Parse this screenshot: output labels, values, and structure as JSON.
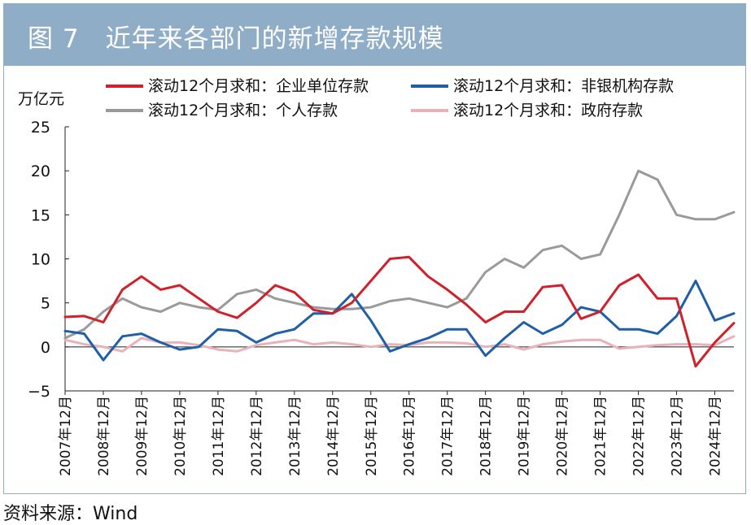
{
  "figure": {
    "title": "图 7　近年来各部门的新增存款规模",
    "source": "资料来源：Wind"
  },
  "colors": {
    "title_bar": "#8fadc6",
    "corporate": "#d0202a",
    "nonbank": "#1f5fa8",
    "household": "#9a9a9a",
    "government": "#e7b3b8"
  },
  "chart_data": {
    "type": "line",
    "ylabel": "万亿元",
    "ylim": [
      -5,
      25
    ],
    "yticks": [
      -5,
      0,
      5,
      10,
      15,
      20,
      25
    ],
    "grid": false,
    "legend_position": "top",
    "x_tick_labels": [
      "2007年12月",
      "2008年12月",
      "2009年12月",
      "2010年12月",
      "2011年12月",
      "2012年12月",
      "2013年12月",
      "2014年12月",
      "2015年12月",
      "2016年12月",
      "2017年12月",
      "2018年12月",
      "2019年12月",
      "2020年12月",
      "2021年12月",
      "2022年12月",
      "2023年12月",
      "2024年12月"
    ],
    "x_start": "2007-12",
    "x_end": "2025-06",
    "x": [
      "2007-12",
      "2008-06",
      "2008-12",
      "2009-06",
      "2009-12",
      "2010-06",
      "2010-12",
      "2011-06",
      "2011-12",
      "2012-06",
      "2012-12",
      "2013-06",
      "2013-12",
      "2014-06",
      "2014-12",
      "2015-06",
      "2015-12",
      "2016-06",
      "2016-12",
      "2017-06",
      "2017-12",
      "2018-06",
      "2018-12",
      "2019-06",
      "2019-12",
      "2020-06",
      "2020-12",
      "2021-06",
      "2021-12",
      "2022-06",
      "2022-12",
      "2023-06",
      "2023-12",
      "2024-06",
      "2024-12",
      "2025-06"
    ],
    "series": [
      {
        "name": "滚动12个月求和：企业单位存款",
        "color_key": "corporate",
        "values": [
          3.4,
          3.5,
          2.8,
          6.5,
          8.0,
          6.5,
          7.0,
          5.5,
          4.0,
          3.3,
          5.0,
          7.0,
          6.2,
          4.2,
          3.8,
          5.0,
          7.5,
          10.0,
          10.2,
          8.0,
          6.5,
          4.8,
          2.8,
          4.0,
          4.0,
          6.8,
          7.0,
          3.2,
          4.0,
          7.0,
          8.2,
          5.5,
          5.5,
          -2.2,
          0.5,
          2.7
        ]
      },
      {
        "name": "滚动12个月求和：非银机构存款",
        "color_key": "nonbank",
        "values": [
          1.8,
          1.5,
          -1.5,
          1.2,
          1.5,
          0.5,
          -0.3,
          0.0,
          2.0,
          1.8,
          0.5,
          1.5,
          2.0,
          3.8,
          3.8,
          6.0,
          3.0,
          -0.5,
          0.3,
          1.0,
          2.0,
          2.0,
          -1.0,
          1.0,
          2.8,
          1.5,
          2.5,
          4.5,
          4.0,
          2.0,
          2.0,
          1.5,
          3.5,
          7.5,
          3.0,
          3.8
        ]
      },
      {
        "name": "滚动12个月求和：个人存款",
        "color_key": "household",
        "values": [
          1.0,
          2.0,
          4.0,
          5.5,
          4.5,
          4.0,
          5.0,
          4.5,
          4.2,
          6.0,
          6.5,
          5.5,
          5.0,
          4.5,
          4.3,
          4.3,
          4.5,
          5.2,
          5.5,
          5.0,
          4.5,
          5.5,
          8.5,
          10.0,
          9.0,
          11.0,
          11.5,
          10.0,
          10.5,
          15.0,
          20.0,
          19.0,
          15.0,
          14.5,
          14.5,
          15.3
        ]
      },
      {
        "name": "滚动12个月求和：政府存款",
        "color_key": "government",
        "values": [
          0.8,
          0.3,
          0.0,
          -0.5,
          1.0,
          0.5,
          0.5,
          0.2,
          -0.3,
          -0.5,
          0.2,
          0.5,
          0.8,
          0.3,
          0.5,
          0.3,
          0.0,
          0.3,
          0.2,
          0.5,
          0.5,
          0.4,
          0.0,
          0.3,
          -0.3,
          0.3,
          0.6,
          0.8,
          0.8,
          -0.2,
          0.0,
          0.2,
          0.3,
          0.3,
          0.2,
          1.2
        ]
      }
    ]
  }
}
